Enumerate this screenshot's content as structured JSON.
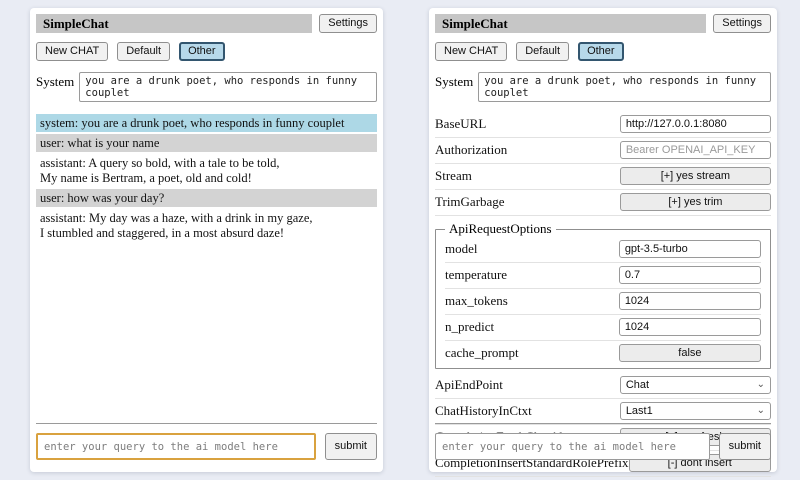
{
  "colors": {
    "page_bg": "#e9ecf4",
    "titlebar_bg": "#c6c6c6",
    "system_msg_bg": "#add8e6",
    "user_msg_bg": "#d3d3d3",
    "active_session_bg": "#b7d9ea",
    "active_session_border": "#33566f",
    "focused_input_border": "#d9a23f"
  },
  "header": {
    "title": "SimpleChat",
    "settings_label": "Settings",
    "sessions": [
      {
        "label": "New CHAT",
        "active": false
      },
      {
        "label": "Default",
        "active": false
      },
      {
        "label": "Other",
        "active": true
      }
    ]
  },
  "system": {
    "label": "System",
    "value": "you are a drunk poet, who responds in funny couplet"
  },
  "chat": {
    "messages": [
      {
        "role": "system",
        "text": "system: you are a drunk poet, who responds in funny couplet"
      },
      {
        "role": "user",
        "text": "user: what is your name"
      },
      {
        "role": "assistant",
        "text": "assistant: A query so bold, with a tale to be told,\nMy name is Bertram, a poet, old and cold!"
      },
      {
        "role": "user",
        "text": "user: how was your day?"
      },
      {
        "role": "assistant",
        "text": "assistant: My day was a haze, with a drink in my gaze,\nI stumbled and staggered, in a most absurd daze!"
      }
    ]
  },
  "settings": {
    "rows_top": [
      {
        "label": "BaseURL",
        "type": "input",
        "value": "http://127.0.0.1:8080"
      },
      {
        "label": "Authorization",
        "type": "input",
        "placeholder": "Bearer OPENAI_API_KEY"
      },
      {
        "label": "Stream",
        "type": "button",
        "value": "[+] yes stream"
      },
      {
        "label": "TrimGarbage",
        "type": "button",
        "value": "[+] yes trim"
      }
    ],
    "fieldset": {
      "legend": "ApiRequestOptions",
      "rows": [
        {
          "label": "model",
          "type": "input",
          "value": "gpt-3.5-turbo"
        },
        {
          "label": "temperature",
          "type": "input",
          "value": "0.7"
        },
        {
          "label": "max_tokens",
          "type": "input",
          "value": "1024"
        },
        {
          "label": "n_predict",
          "type": "input",
          "value": "1024"
        },
        {
          "label": "cache_prompt",
          "type": "button",
          "value": "false"
        }
      ]
    },
    "rows_bottom": [
      {
        "label": "ApiEndPoint",
        "type": "select",
        "value": "Chat"
      },
      {
        "label": "ChatHistoryInCtxt",
        "type": "select",
        "value": "Last1"
      },
      {
        "label": "CompletionFreshChatAlways",
        "type": "button",
        "value": "[+] yes fresh"
      },
      {
        "label": "CompletionInsertStandardRolePrefix",
        "type": "button",
        "value": "[-] dont insert"
      }
    ]
  },
  "query": {
    "placeholder": "enter your query to the ai model here",
    "submit_label": "submit"
  }
}
